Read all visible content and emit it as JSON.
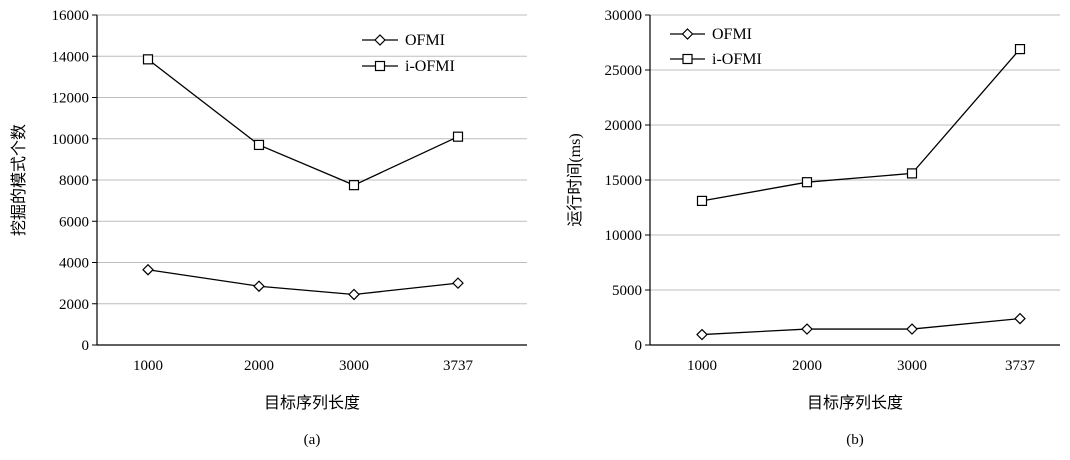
{
  "chart_data": [
    {
      "type": "line",
      "panel_label": "(a)",
      "categories": [
        "1000",
        "2000",
        "3000",
        "3737"
      ],
      "series": [
        {
          "name": "OFMI",
          "marker": "diamond",
          "values": [
            3650,
            2850,
            2450,
            3000
          ]
        },
        {
          "name": "i-OFMI",
          "marker": "square",
          "values": [
            13850,
            9700,
            7750,
            10100
          ]
        }
      ],
      "xlabel": "目标序列长度",
      "ylabel": "挖掘的模式个数",
      "ylim": [
        0,
        16000
      ],
      "yticks": [
        "0",
        "2000",
        "4000",
        "6000",
        "8000",
        "10000",
        "12000",
        "14000",
        "16000"
      ],
      "grid": true,
      "legend_position": "top-right"
    },
    {
      "type": "line",
      "panel_label": "(b)",
      "categories": [
        "1000",
        "2000",
        "3000",
        "3737"
      ],
      "series": [
        {
          "name": "OFMI",
          "marker": "diamond",
          "values": [
            950,
            1450,
            1450,
            2400
          ]
        },
        {
          "name": "i-OFMI",
          "marker": "square",
          "values": [
            13100,
            14800,
            15600,
            26900
          ]
        }
      ],
      "xlabel": "目标序列长度",
      "ylabel": "运行时间(ms)",
      "ylim": [
        0,
        30000
      ],
      "yticks": [
        "0",
        "5000",
        "10000",
        "15000",
        "20000",
        "25000",
        "30000"
      ],
      "grid": true,
      "legend_position": "top-left"
    }
  ]
}
